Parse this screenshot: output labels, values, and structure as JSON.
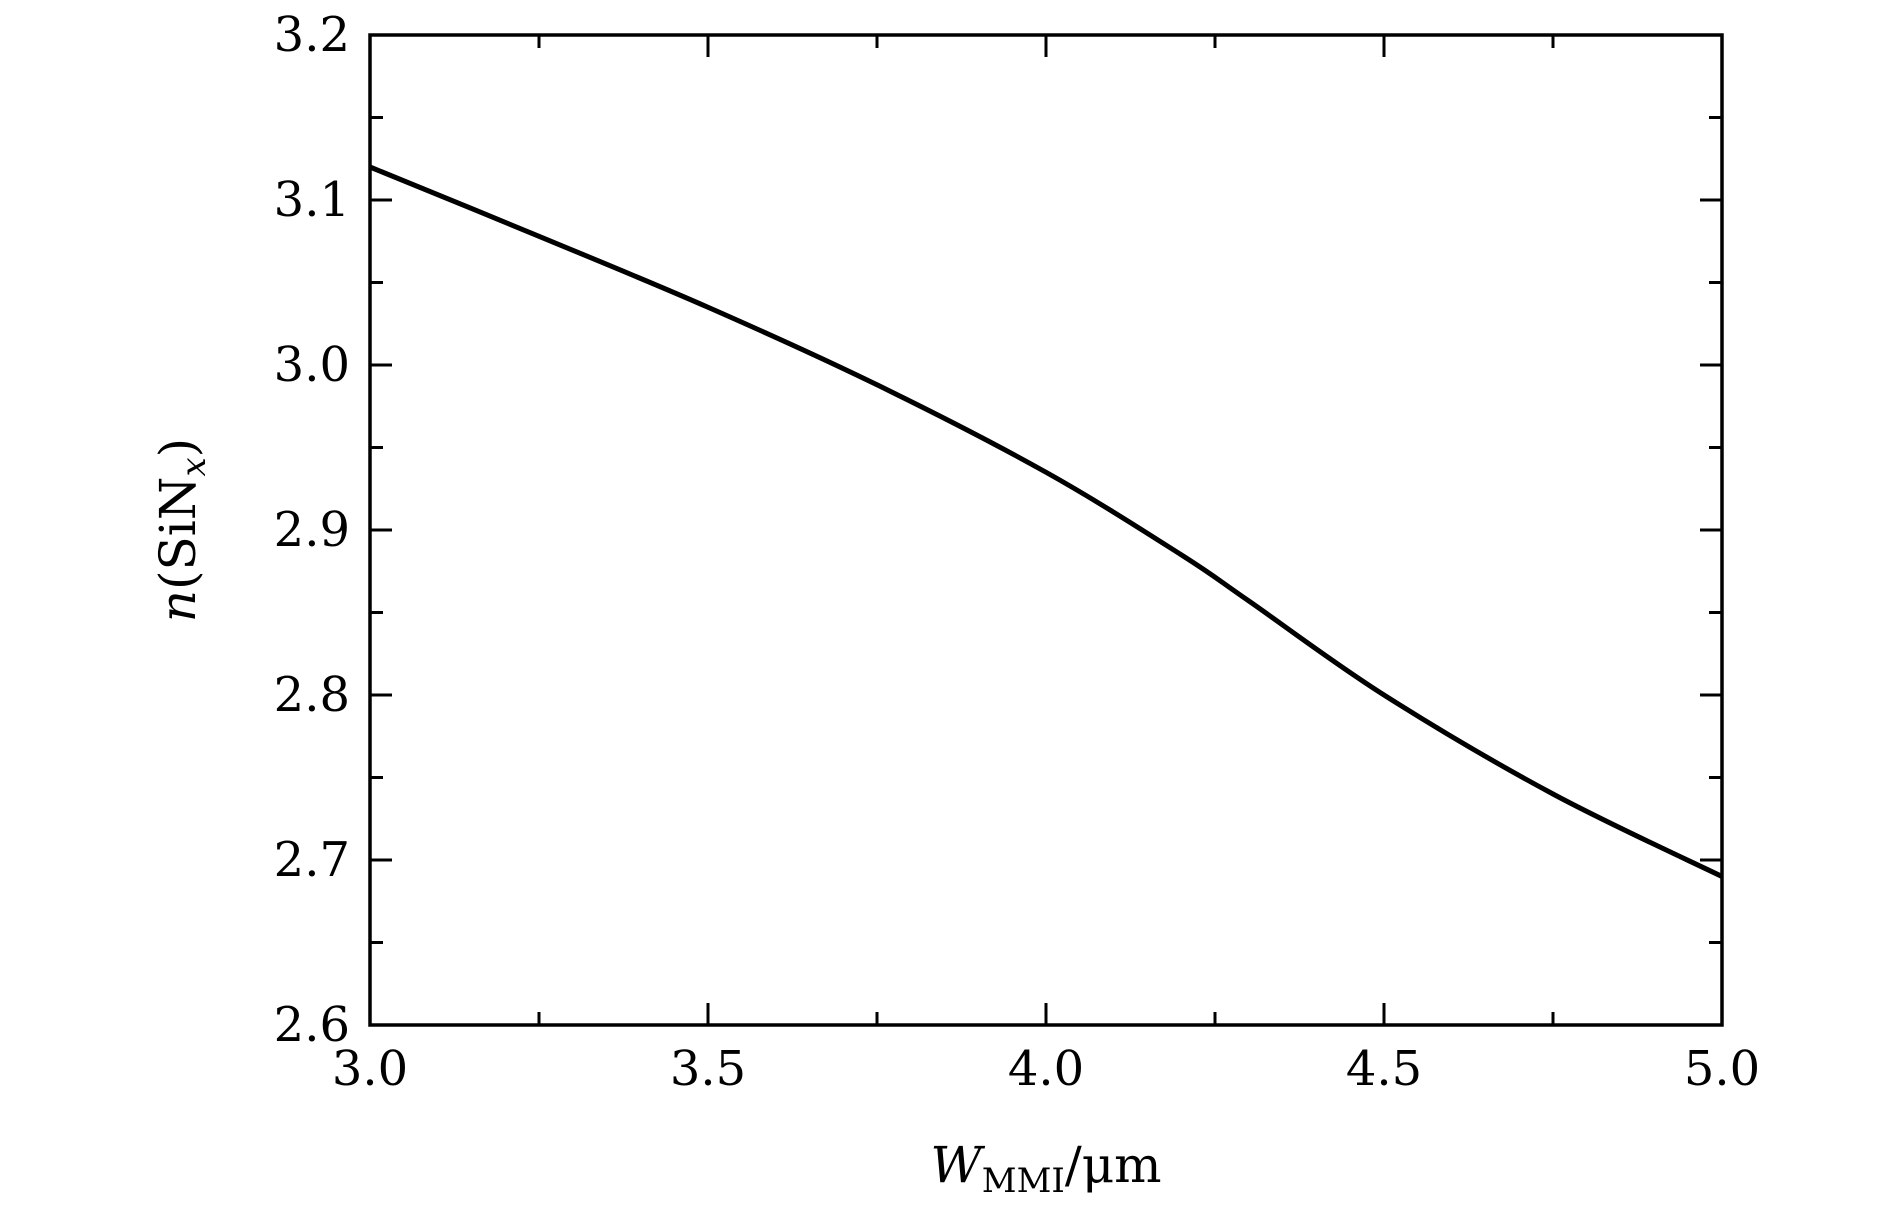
{
  "chart_data": {
    "type": "line",
    "xlabel": {
      "main": "W",
      "sub": "MMI",
      "unit": "/μm"
    },
    "ylabel": {
      "pre": "n",
      "paren_open": "(",
      "main": "SiN",
      "sub": "x",
      "paren_close": ")"
    },
    "xlim": [
      3.0,
      5.0
    ],
    "ylim": [
      2.6,
      3.2
    ],
    "x_ticks": [
      "3.0",
      "3.5",
      "4.0",
      "4.5",
      "5.0"
    ],
    "y_ticks": [
      "2.6",
      "2.7",
      "2.8",
      "2.9",
      "3.0",
      "3.1",
      "3.2"
    ],
    "grid": false,
    "series": [
      {
        "color": "#000000",
        "x": [
          3.0,
          3.25,
          3.5,
          3.75,
          4.0,
          4.2,
          4.3,
          4.5,
          4.75,
          5.0
        ],
        "y": [
          3.12,
          3.078,
          3.035,
          2.988,
          2.935,
          2.885,
          2.857,
          2.8,
          2.74,
          2.69
        ]
      }
    ]
  }
}
